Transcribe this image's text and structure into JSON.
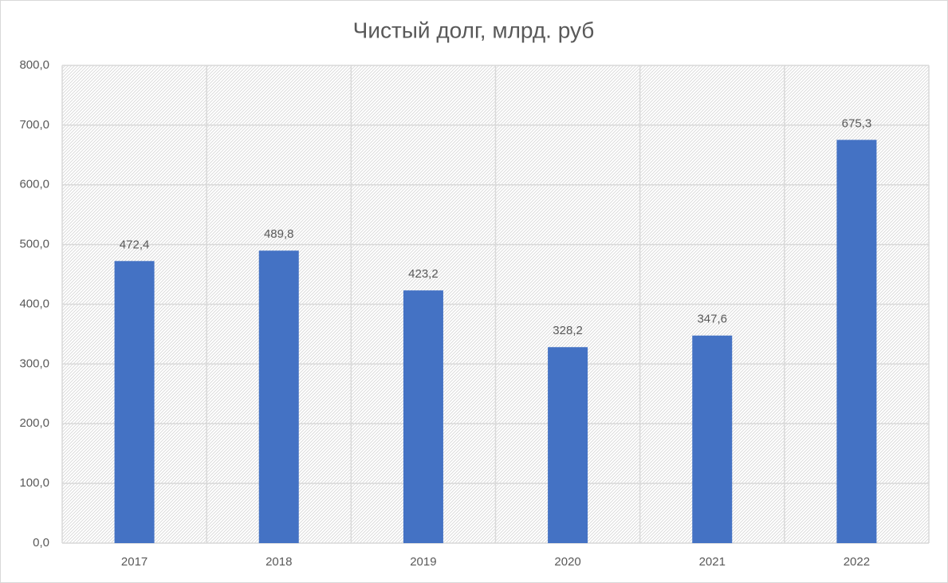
{
  "chart_data": {
    "type": "bar",
    "title": "Чистый долг, млрд. руб",
    "categories": [
      "2017",
      "2018",
      "2019",
      "2020",
      "2021",
      "2022"
    ],
    "values": [
      472.4,
      489.8,
      423.2,
      328.2,
      347.6,
      675.3
    ],
    "value_labels": [
      "472,4",
      "489,8",
      "423,2",
      "328,2",
      "347,6",
      "675,3"
    ],
    "color": "#4472c4",
    "ylim": [
      0,
      800
    ],
    "yticks": [
      {
        "value": 0,
        "label": "0,0"
      },
      {
        "value": 100,
        "label": "100,0"
      },
      {
        "value": 200,
        "label": "200,0"
      },
      {
        "value": 300,
        "label": "300,0"
      },
      {
        "value": 400,
        "label": "400,0"
      },
      {
        "value": 500,
        "label": "500,0"
      },
      {
        "value": 600,
        "label": "600,0"
      },
      {
        "value": 700,
        "label": "700,0"
      },
      {
        "value": 800,
        "label": "800,0"
      }
    ],
    "grid": true
  }
}
